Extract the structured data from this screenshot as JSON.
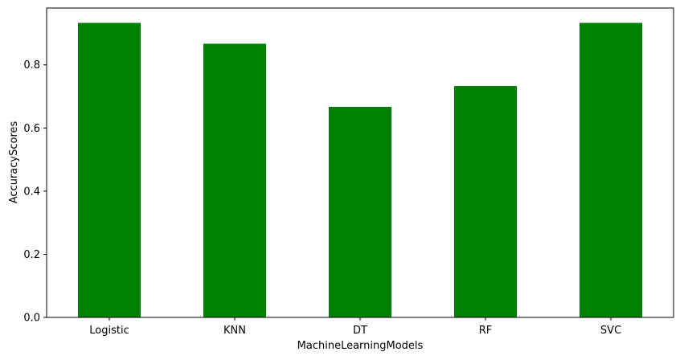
{
  "chart_data": {
    "type": "bar",
    "title": "",
    "xlabel": "MachineLearningModels",
    "ylabel": "AccuracyScores",
    "categories": [
      "Logistic",
      "KNN",
      "DT",
      "RF",
      "SVC"
    ],
    "values": [
      0.933,
      0.867,
      0.667,
      0.733,
      0.933
    ],
    "ylim": [
      0,
      0.98
    ],
    "yticks": [
      0.0,
      0.2,
      0.4,
      0.6,
      0.8
    ],
    "ytick_labels": [
      "0.0",
      "0.2",
      "0.4",
      "0.6",
      "0.8"
    ],
    "grid": false,
    "bar_color": "#008000"
  }
}
